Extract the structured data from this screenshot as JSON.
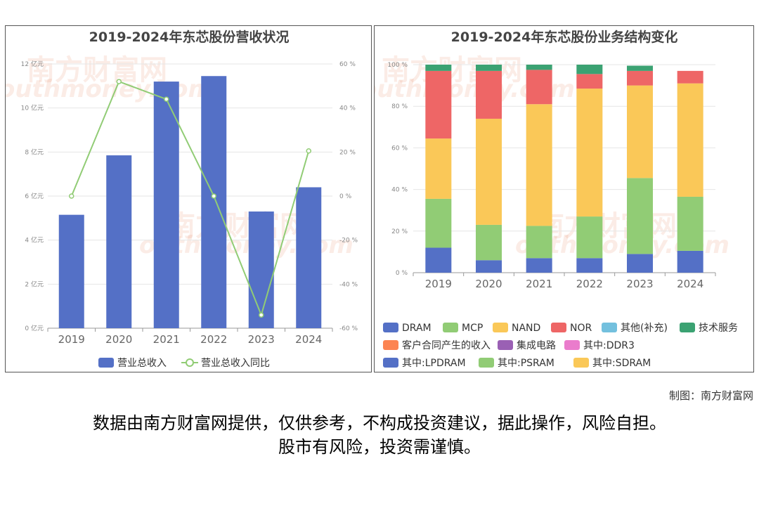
{
  "watermark": {
    "cn": "南方财富网",
    "en": "outhmoney.com"
  },
  "credit": "制图：南方财富网",
  "disclaimer": {
    "line1": "数据由南方财富网提供，仅供参考，不构成投资建议，据此操作，风险自担。",
    "line2": "股市有风险，投资需谨慎。"
  },
  "chart_data": [
    {
      "type": "bar",
      "title": "2019-2024年东芯股份营收状况",
      "categories": [
        "2019",
        "2020",
        "2021",
        "2022",
        "2023",
        "2024"
      ],
      "y_ticks": [
        "0 亿元",
        "2 亿元",
        "4 亿元",
        "6 亿元",
        "8 亿元",
        "10 亿元",
        "12 亿元"
      ],
      "y2_ticks": [
        "-60 %",
        "-40 %",
        "-20 %",
        "0 %",
        "20 %",
        "40 %",
        "60 %"
      ],
      "ylim": [
        0,
        12
      ],
      "y2lim": [
        -60,
        60
      ],
      "grid": true,
      "legend_position": "bottom",
      "series": [
        {
          "name": "营业总收入",
          "type": "bar",
          "axis": "left",
          "color": "#5470c6",
          "values": [
            5.15,
            7.85,
            11.2,
            11.45,
            5.3,
            6.4
          ]
        },
        {
          "name": "营业总收入同比",
          "type": "line",
          "axis": "right",
          "color": "#91cc75",
          "values": [
            0,
            52,
            44,
            0,
            -54,
            20.5
          ]
        }
      ]
    },
    {
      "type": "bar",
      "stacked": true,
      "title": "2019-2024年东芯股份业务结构变化",
      "categories": [
        "2019",
        "2020",
        "2021",
        "2022",
        "2023",
        "2024"
      ],
      "y_ticks": [
        "0 %",
        "20 %",
        "40 %",
        "60 %",
        "80 %",
        "100 %"
      ],
      "ylim": [
        0,
        100
      ],
      "grid": true,
      "legend_position": "bottom",
      "series": [
        {
          "name": "DRAM",
          "color": "#5470c6",
          "values": [
            12,
            6,
            7,
            7,
            9,
            10.5
          ]
        },
        {
          "name": "MCP",
          "color": "#91cc75",
          "values": [
            23.5,
            17,
            15.5,
            20,
            36.5,
            26
          ]
        },
        {
          "name": "NAND",
          "color": "#fac858",
          "values": [
            29,
            51,
            58.5,
            61.5,
            44.5,
            54.5
          ]
        },
        {
          "name": "NOR",
          "color": "#ee6666",
          "values": [
            32.5,
            23,
            16.5,
            7,
            7,
            6
          ]
        },
        {
          "name": "其他(补充)",
          "color": "#73c0de",
          "values": [
            0,
            0,
            0,
            0,
            0,
            0
          ]
        },
        {
          "name": "技术服务",
          "color": "#3ba272",
          "values": [
            3,
            3,
            2.5,
            4.5,
            2.5,
            0
          ]
        },
        {
          "name": "客户合同产生的收入",
          "color": "#fc8452",
          "values": [
            0,
            0,
            0,
            0,
            0,
            0
          ]
        },
        {
          "name": "集成电路",
          "color": "#9a60b4",
          "values": [
            0,
            0,
            0,
            0,
            0,
            0
          ]
        },
        {
          "name": "其中:DDR3",
          "color": "#ea7ccc",
          "values": [
            0,
            0,
            0,
            0,
            0,
            0
          ]
        },
        {
          "name": "其中:LPDRAM",
          "color": "#5470c6",
          "values": [
            0,
            0,
            0,
            0,
            0,
            0
          ]
        },
        {
          "name": "其中:PSRAM",
          "color": "#91cc75",
          "values": [
            0,
            0,
            0,
            0,
            0,
            0
          ]
        },
        {
          "name": "其中:SDRAM",
          "color": "#fac858",
          "values": [
            0,
            0,
            0,
            0,
            0,
            0
          ]
        }
      ]
    }
  ]
}
